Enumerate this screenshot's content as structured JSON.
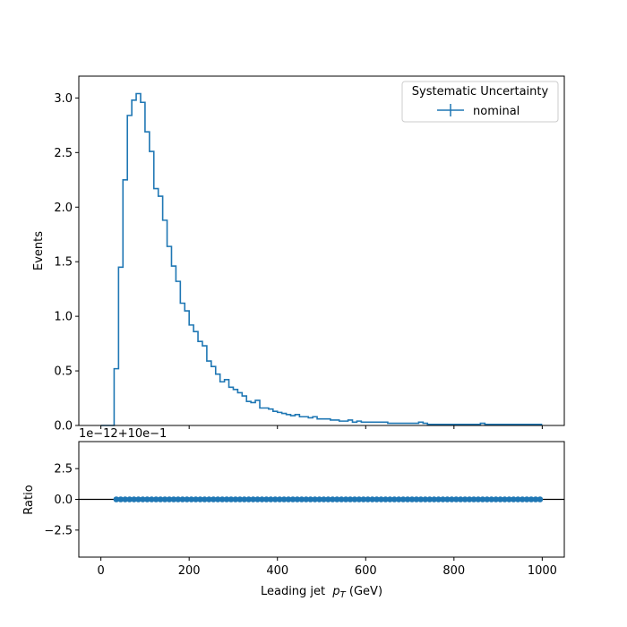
{
  "colors": {
    "series": "#1f77b4",
    "axis": "#000000",
    "legend_border": "#cccccc",
    "background": "#ffffff"
  },
  "chart_data": {
    "type": "histogram-ratio",
    "legend": {
      "title": "Systematic Uncertainty",
      "placement": "upper right",
      "entries": [
        "nominal"
      ]
    },
    "main": {
      "type": "step-histogram",
      "ylabel": "Events",
      "ylim": [
        0,
        3.2
      ],
      "yticks": [
        0.0,
        0.5,
        1.0,
        1.5,
        2.0,
        2.5,
        3.0
      ],
      "ytick_labels": [
        "0.0",
        "0.5",
        "1.0",
        "1.5",
        "2.0",
        "2.5",
        "3.0"
      ],
      "bin_width": 10,
      "first_bin_edge": 0,
      "series": [
        {
          "name": "nominal",
          "values": [
            0,
            0,
            0,
            0.52,
            1.45,
            2.25,
            2.84,
            2.98,
            3.04,
            2.96,
            2.69,
            2.51,
            2.17,
            2.1,
            1.88,
            1.64,
            1.46,
            1.32,
            1.12,
            1.05,
            0.92,
            0.86,
            0.77,
            0.73,
            0.59,
            0.54,
            0.47,
            0.4,
            0.42,
            0.35,
            0.33,
            0.3,
            0.27,
            0.22,
            0.21,
            0.23,
            0.16,
            0.16,
            0.15,
            0.13,
            0.12,
            0.11,
            0.1,
            0.09,
            0.1,
            0.08,
            0.08,
            0.07,
            0.08,
            0.06,
            0.06,
            0.06,
            0.05,
            0.05,
            0.04,
            0.04,
            0.05,
            0.03,
            0.04,
            0.03,
            0.03,
            0.03,
            0.03,
            0.03,
            0.03,
            0.02,
            0.02,
            0.02,
            0.02,
            0.02,
            0.02,
            0.02,
            0.03,
            0.02,
            0.01,
            0.01,
            0.01,
            0.01,
            0.01,
            0.01,
            0.01,
            0.01,
            0.01,
            0.01,
            0.01,
            0.01,
            0.02,
            0.01,
            0.01,
            0.01,
            0.01,
            0.01,
            0.01,
            0.01,
            0.01,
            0.01,
            0.01,
            0.01,
            0.01,
            0.01
          ]
        }
      ]
    },
    "ratio": {
      "type": "scatter",
      "ylabel": "Ratio",
      "offset_text": "1e−12+10e−1",
      "ylim": [
        -4.7,
        4.7
      ],
      "yticks": [
        -2.5,
        0.0,
        2.5
      ],
      "ytick_labels": [
        "−2.5",
        "0.0",
        "2.5"
      ],
      "reference_line": 0.0,
      "x_start": 35,
      "x_step": 10,
      "count": 97,
      "value": 0.0
    },
    "xaxis": {
      "label": "Leading jet  pT (GeV)",
      "label_main": "Leading jet  ",
      "label_var": "p",
      "label_sub": "T",
      "label_unit": " (GeV)",
      "xlim": [
        -50,
        1050
      ],
      "ticks": [
        0,
        200,
        400,
        600,
        800,
        1000
      ],
      "tick_labels": [
        "0",
        "200",
        "400",
        "600",
        "800",
        "1000"
      ]
    }
  }
}
